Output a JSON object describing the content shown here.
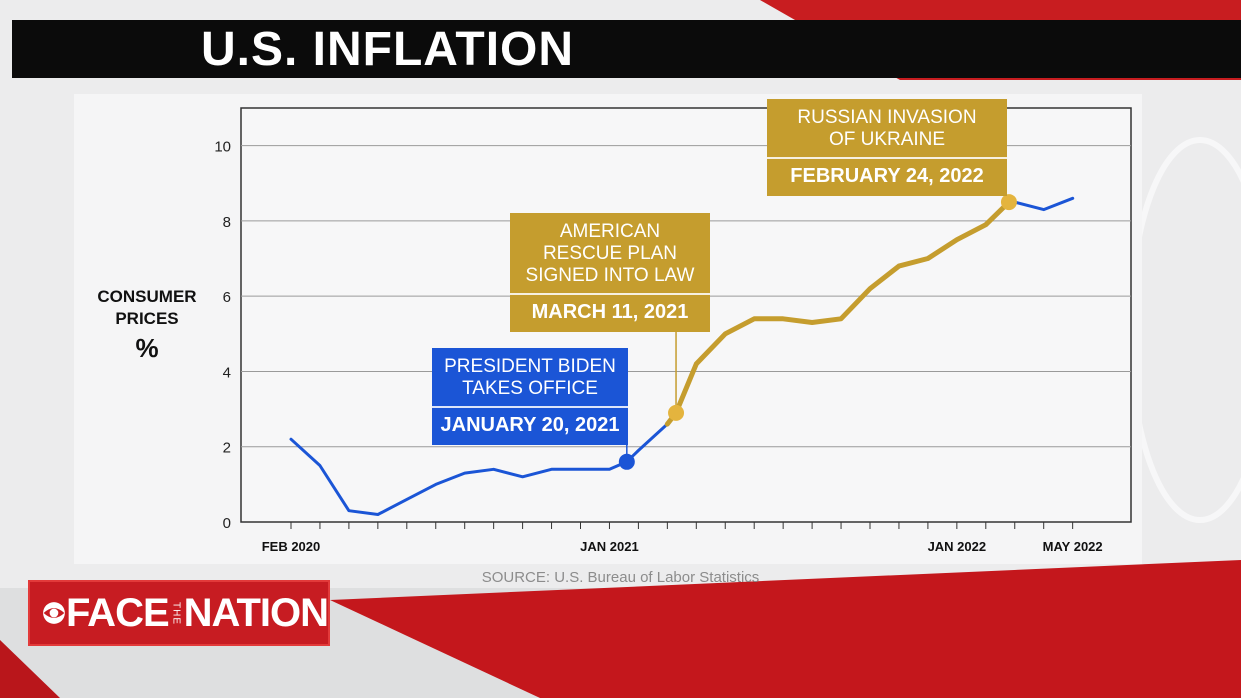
{
  "title": "U.S. INFLATION",
  "y_axis_label": {
    "line1": "CONSUMER",
    "line2": "PRICES",
    "unit": "%"
  },
  "source": "SOURCE: U.S. Bureau of Labor Statistics",
  "annotations": [
    {
      "line1": "PRESIDENT BIDEN",
      "line2": "TAKES OFFICE",
      "line3": "",
      "date": "JANUARY 20, 2021",
      "color": "#1b55d6"
    },
    {
      "line1": "AMERICAN",
      "line2": "RESCUE PLAN",
      "line3": "SIGNED INTO LAW",
      "date": "MARCH 11, 2021",
      "color": "#c59d2e"
    },
    {
      "line1": "RUSSIAN INVASION",
      "line2": "OF UKRAINE",
      "line3": "",
      "date": "FEBRUARY 24, 2022",
      "color": "#c59d2e"
    }
  ],
  "logo": {
    "face": "FACE",
    "the": "THE",
    "nation": "NATION"
  },
  "colors": {
    "blue": "#1b55d6",
    "gold": "#c59d2e",
    "red": "#c71c22"
  },
  "chart_data": {
    "type": "line",
    "title": "U.S. INFLATION",
    "ylabel": "CONSUMER PRICES %",
    "xlabel": "",
    "ylim": [
      0,
      11
    ],
    "yticks": [
      0,
      2,
      4,
      6,
      8,
      10
    ],
    "x_tick_labels": [
      {
        "label": "FEB 2020",
        "month": 0
      },
      {
        "label": "JAN 2021",
        "month": 11
      },
      {
        "label": "JAN 2022",
        "month": 23
      },
      {
        "label": "MAY 2022",
        "month": 27
      }
    ],
    "grid": true,
    "series": [
      {
        "color": "#1b55d6",
        "x": [
          0,
          1,
          2,
          3,
          4,
          5,
          6,
          7,
          8,
          9,
          10,
          11,
          11.6,
          12,
          13
        ],
        "values": [
          2.2,
          1.5,
          0.3,
          0.2,
          0.6,
          1.0,
          1.3,
          1.4,
          1.2,
          1.4,
          1.4,
          1.4,
          1.6,
          1.9,
          2.6
        ]
      },
      {
        "color": "#c59d2e",
        "x": [
          13,
          13.3,
          14,
          15,
          16,
          17,
          18,
          19,
          20,
          21,
          22,
          23,
          24,
          24.8
        ],
        "values": [
          2.6,
          2.9,
          4.2,
          5.0,
          5.4,
          5.4,
          5.3,
          5.4,
          6.2,
          6.8,
          7.0,
          7.5,
          7.9,
          8.5
        ]
      },
      {
        "color": "#1b55d6",
        "x": [
          24.8,
          25,
          26,
          27
        ],
        "values": [
          8.5,
          8.5,
          8.3,
          8.6
        ]
      }
    ],
    "markers": [
      {
        "x": 11.6,
        "y": 1.6,
        "color": "#1b55d6"
      },
      {
        "x": 13.3,
        "y": 2.9,
        "color": "#e4b43e"
      },
      {
        "x": 24.8,
        "y": 8.5,
        "color": "#e4b43e"
      }
    ]
  }
}
